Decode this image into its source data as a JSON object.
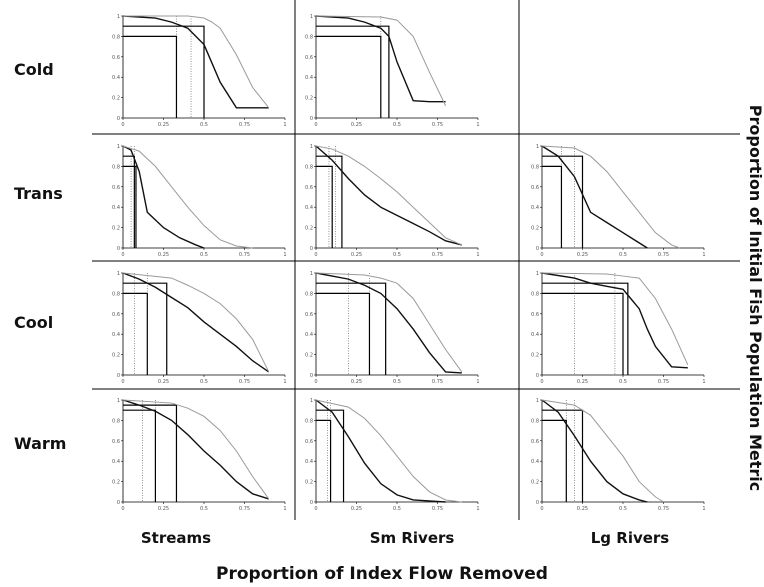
{
  "figure": {
    "xlabel": "Proportion of Index Flow Removed",
    "ylabel": "Proportion of Initial Fish Population Metric",
    "rows": [
      "Cold",
      "Trans",
      "Cool",
      "Warm"
    ],
    "columns": [
      "Streams",
      "Sm Rivers",
      "Lg Rivers"
    ]
  },
  "colors": {
    "median": "#111111",
    "bound": "#9a9a9a",
    "frame": "#000000"
  },
  "chart_data": [
    {
      "type": "line",
      "row": "Cold",
      "column": "Streams",
      "xlim": [
        0,
        1
      ],
      "ylim": [
        0,
        1
      ],
      "series": [
        {
          "role": "median",
          "x": [
            0,
            0.2,
            0.3,
            0.4,
            0.5,
            0.6,
            0.7,
            0.8,
            0.9
          ],
          "y": [
            1,
            0.98,
            0.94,
            0.88,
            0.72,
            0.35,
            0.1,
            0.1,
            0.1
          ]
        },
        {
          "role": "upper",
          "x": [
            0,
            0.4,
            0.5,
            0.55,
            0.6,
            0.7,
            0.8,
            0.9
          ],
          "y": [
            1,
            1,
            0.98,
            0.94,
            0.88,
            0.62,
            0.3,
            0.1
          ]
        }
      ],
      "thresholds": [
        {
          "y": 0.9,
          "x": 0.5
        },
        {
          "y": 0.8,
          "x": 0.33
        }
      ],
      "markers_x": [
        0.33,
        0.42
      ]
    },
    {
      "type": "line",
      "row": "Cold",
      "column": "Sm Rivers",
      "xlim": [
        0,
        1
      ],
      "ylim": [
        0,
        1
      ],
      "series": [
        {
          "role": "median",
          "x": [
            0,
            0.2,
            0.3,
            0.4,
            0.45,
            0.5,
            0.6,
            0.7,
            0.8
          ],
          "y": [
            1,
            0.98,
            0.94,
            0.88,
            0.8,
            0.55,
            0.17,
            0.16,
            0.16
          ]
        },
        {
          "role": "upper",
          "x": [
            0,
            0.4,
            0.5,
            0.6,
            0.7,
            0.8
          ],
          "y": [
            1,
            0.99,
            0.96,
            0.8,
            0.45,
            0.12
          ]
        }
      ],
      "thresholds": [
        {
          "y": 0.9,
          "x": 0.45
        },
        {
          "y": 0.8,
          "x": 0.4
        }
      ],
      "markers_x": [
        0.4
      ]
    },
    {
      "type": "line",
      "row": "Trans",
      "column": "Streams",
      "xlim": [
        0,
        1
      ],
      "ylim": [
        0,
        1
      ],
      "series": [
        {
          "role": "median",
          "x": [
            0,
            0.05,
            0.1,
            0.15,
            0.25,
            0.35,
            0.45,
            0.5
          ],
          "y": [
            1,
            0.96,
            0.75,
            0.35,
            0.2,
            0.1,
            0.03,
            0
          ]
        },
        {
          "role": "upper",
          "x": [
            0,
            0.1,
            0.2,
            0.3,
            0.4,
            0.5,
            0.6,
            0.7,
            0.8
          ],
          "y": [
            1,
            0.95,
            0.8,
            0.6,
            0.4,
            0.22,
            0.08,
            0.02,
            0
          ]
        }
      ],
      "thresholds": [
        {
          "y": 0.9,
          "x": 0.07
        },
        {
          "y": 0.8,
          "x": 0.08
        }
      ],
      "markers_x": [
        0.05,
        0.07
      ]
    },
    {
      "type": "line",
      "row": "Trans",
      "column": "Sm Rivers",
      "xlim": [
        0,
        1
      ],
      "ylim": [
        0,
        1
      ],
      "series": [
        {
          "role": "median",
          "x": [
            0,
            0.1,
            0.2,
            0.3,
            0.4,
            0.5,
            0.6,
            0.7,
            0.8,
            0.9
          ],
          "y": [
            1,
            0.86,
            0.68,
            0.52,
            0.4,
            0.32,
            0.24,
            0.16,
            0.07,
            0.03
          ]
        },
        {
          "role": "upper",
          "x": [
            0,
            0.1,
            0.2,
            0.3,
            0.4,
            0.5,
            0.6,
            0.7,
            0.8,
            0.9
          ],
          "y": [
            1,
            0.97,
            0.9,
            0.8,
            0.68,
            0.55,
            0.4,
            0.25,
            0.1,
            0.03
          ]
        }
      ],
      "thresholds": [
        {
          "y": 0.9,
          "x": 0.16
        },
        {
          "y": 0.8,
          "x": 0.1
        }
      ],
      "markers_x": [
        0.08,
        0.12
      ]
    },
    {
      "type": "line",
      "row": "Trans",
      "column": "Lg Rivers",
      "xlim": [
        0,
        1
      ],
      "ylim": [
        0,
        1
      ],
      "series": [
        {
          "role": "median",
          "x": [
            0,
            0.1,
            0.2,
            0.3,
            0.4,
            0.5,
            0.6,
            0.65
          ],
          "y": [
            1,
            0.9,
            0.7,
            0.35,
            0.25,
            0.15,
            0.05,
            0
          ]
        },
        {
          "role": "upper",
          "x": [
            0,
            0.2,
            0.3,
            0.4,
            0.5,
            0.6,
            0.7,
            0.8,
            0.85
          ],
          "y": [
            1,
            0.98,
            0.9,
            0.75,
            0.55,
            0.35,
            0.15,
            0.03,
            0
          ]
        }
      ],
      "thresholds": [
        {
          "y": 0.9,
          "x": 0.25
        },
        {
          "y": 0.8,
          "x": 0.12
        }
      ],
      "markers_x": [
        0.12,
        0.2
      ]
    },
    {
      "type": "line",
      "row": "Cool",
      "column": "Streams",
      "xlim": [
        0,
        1
      ],
      "ylim": [
        0,
        1
      ],
      "series": [
        {
          "role": "median",
          "x": [
            0,
            0.1,
            0.2,
            0.3,
            0.4,
            0.5,
            0.6,
            0.7,
            0.8,
            0.9
          ],
          "y": [
            1,
            0.94,
            0.86,
            0.76,
            0.66,
            0.52,
            0.4,
            0.28,
            0.14,
            0.03
          ]
        },
        {
          "role": "upper",
          "x": [
            0,
            0.3,
            0.4,
            0.5,
            0.6,
            0.7,
            0.8,
            0.9
          ],
          "y": [
            1,
            0.95,
            0.88,
            0.8,
            0.7,
            0.55,
            0.35,
            0.03
          ]
        }
      ],
      "thresholds": [
        {
          "y": 0.9,
          "x": 0.27
        },
        {
          "y": 0.8,
          "x": 0.15
        }
      ],
      "markers_x": [
        0.07,
        0.15
      ]
    },
    {
      "type": "line",
      "row": "Cool",
      "column": "Sm Rivers",
      "xlim": [
        0,
        1
      ],
      "ylim": [
        0,
        1
      ],
      "series": [
        {
          "role": "median",
          "x": [
            0,
            0.2,
            0.3,
            0.4,
            0.5,
            0.6,
            0.7,
            0.8,
            0.9
          ],
          "y": [
            1,
            0.94,
            0.88,
            0.8,
            0.65,
            0.45,
            0.22,
            0.03,
            0.02
          ]
        },
        {
          "role": "upper",
          "x": [
            0,
            0.3,
            0.4,
            0.5,
            0.6,
            0.7,
            0.8,
            0.9
          ],
          "y": [
            1,
            0.98,
            0.95,
            0.9,
            0.75,
            0.5,
            0.25,
            0.03
          ]
        }
      ],
      "thresholds": [
        {
          "y": 0.9,
          "x": 0.43
        },
        {
          "y": 0.8,
          "x": 0.33
        }
      ],
      "markers_x": [
        0.2,
        0.33
      ]
    },
    {
      "type": "line",
      "row": "Cool",
      "column": "Lg Rivers",
      "xlim": [
        0,
        1
      ],
      "ylim": [
        0,
        1
      ],
      "series": [
        {
          "role": "median",
          "x": [
            0,
            0.2,
            0.3,
            0.4,
            0.5,
            0.6,
            0.65,
            0.7,
            0.8,
            0.9
          ],
          "y": [
            1,
            0.95,
            0.9,
            0.87,
            0.84,
            0.65,
            0.45,
            0.28,
            0.08,
            0.07
          ]
        },
        {
          "role": "upper",
          "x": [
            0,
            0.4,
            0.5,
            0.6,
            0.7,
            0.8,
            0.9
          ],
          "y": [
            1,
            0.99,
            0.97,
            0.95,
            0.75,
            0.45,
            0.1
          ]
        }
      ],
      "thresholds": [
        {
          "y": 0.9,
          "x": 0.53
        },
        {
          "y": 0.8,
          "x": 0.5
        }
      ],
      "markers_x": [
        0.2,
        0.45
      ]
    },
    {
      "type": "line",
      "row": "Warm",
      "column": "Streams",
      "xlim": [
        0,
        1
      ],
      "ylim": [
        0,
        1
      ],
      "series": [
        {
          "role": "median",
          "x": [
            0,
            0.1,
            0.2,
            0.3,
            0.4,
            0.5,
            0.6,
            0.7,
            0.8,
            0.9
          ],
          "y": [
            1,
            0.95,
            0.89,
            0.8,
            0.66,
            0.5,
            0.36,
            0.2,
            0.08,
            0.03
          ]
        },
        {
          "role": "upper",
          "x": [
            0,
            0.3,
            0.4,
            0.5,
            0.6,
            0.7,
            0.8,
            0.9
          ],
          "y": [
            1,
            0.97,
            0.92,
            0.84,
            0.7,
            0.5,
            0.25,
            0.03
          ]
        }
      ],
      "thresholds": [
        {
          "y": 0.95,
          "x": 0.33
        },
        {
          "y": 0.9,
          "x": 0.2
        }
      ],
      "markers_x": [
        0.12,
        0.2
      ]
    },
    {
      "type": "line",
      "row": "Warm",
      "column": "Sm Rivers",
      "xlim": [
        0,
        1
      ],
      "ylim": [
        0,
        1
      ],
      "series": [
        {
          "role": "median",
          "x": [
            0,
            0.1,
            0.2,
            0.3,
            0.4,
            0.5,
            0.6,
            0.7,
            0.8
          ],
          "y": [
            1,
            0.88,
            0.64,
            0.38,
            0.18,
            0.07,
            0.02,
            0.01,
            0
          ]
        },
        {
          "role": "upper",
          "x": [
            0,
            0.2,
            0.3,
            0.4,
            0.5,
            0.6,
            0.7,
            0.8,
            0.9
          ],
          "y": [
            1,
            0.93,
            0.82,
            0.65,
            0.45,
            0.25,
            0.1,
            0.02,
            0
          ]
        }
      ],
      "thresholds": [
        {
          "y": 0.9,
          "x": 0.17
        },
        {
          "y": 0.8,
          "x": 0.09
        }
      ],
      "markers_x": [
        0.07,
        0.09
      ]
    },
    {
      "type": "line",
      "row": "Warm",
      "column": "Lg Rivers",
      "xlim": [
        0,
        1
      ],
      "ylim": [
        0,
        1
      ],
      "series": [
        {
          "role": "median",
          "x": [
            0,
            0.1,
            0.2,
            0.3,
            0.4,
            0.5,
            0.6,
            0.65
          ],
          "y": [
            1,
            0.88,
            0.65,
            0.4,
            0.2,
            0.08,
            0.02,
            0
          ]
        },
        {
          "role": "upper",
          "x": [
            0,
            0.2,
            0.3,
            0.4,
            0.5,
            0.6,
            0.7,
            0.75
          ],
          "y": [
            1,
            0.95,
            0.85,
            0.65,
            0.45,
            0.2,
            0.05,
            0
          ]
        }
      ],
      "thresholds": [
        {
          "y": 0.9,
          "x": 0.25
        },
        {
          "y": 0.8,
          "x": 0.15
        }
      ],
      "markers_x": [
        0.15,
        0.2
      ]
    }
  ]
}
